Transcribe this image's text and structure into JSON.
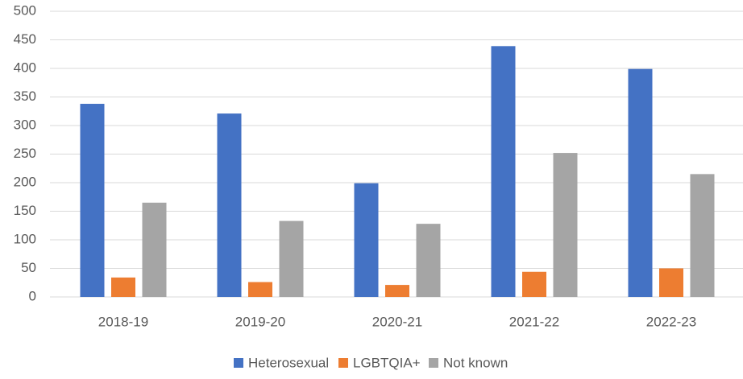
{
  "chart_data": {
    "type": "bar",
    "categories": [
      "2018-19",
      "2019-20",
      "2020-21",
      "2021-22",
      "2022-23"
    ],
    "series": [
      {
        "name": "Heterosexual",
        "color": "#4472c4",
        "values": [
          338,
          321,
          199,
          439,
          399
        ]
      },
      {
        "name": "LGBTQIA+",
        "color": "#ed7d31",
        "values": [
          34,
          26,
          21,
          44,
          50
        ]
      },
      {
        "name": "Not known",
        "color": "#a5a5a5",
        "values": [
          165,
          133,
          128,
          252,
          215
        ]
      }
    ],
    "ylim": [
      0,
      500
    ],
    "yticks": [
      0,
      50,
      100,
      150,
      200,
      250,
      300,
      350,
      400,
      450,
      500
    ],
    "grid": true,
    "legend": "bottom"
  }
}
